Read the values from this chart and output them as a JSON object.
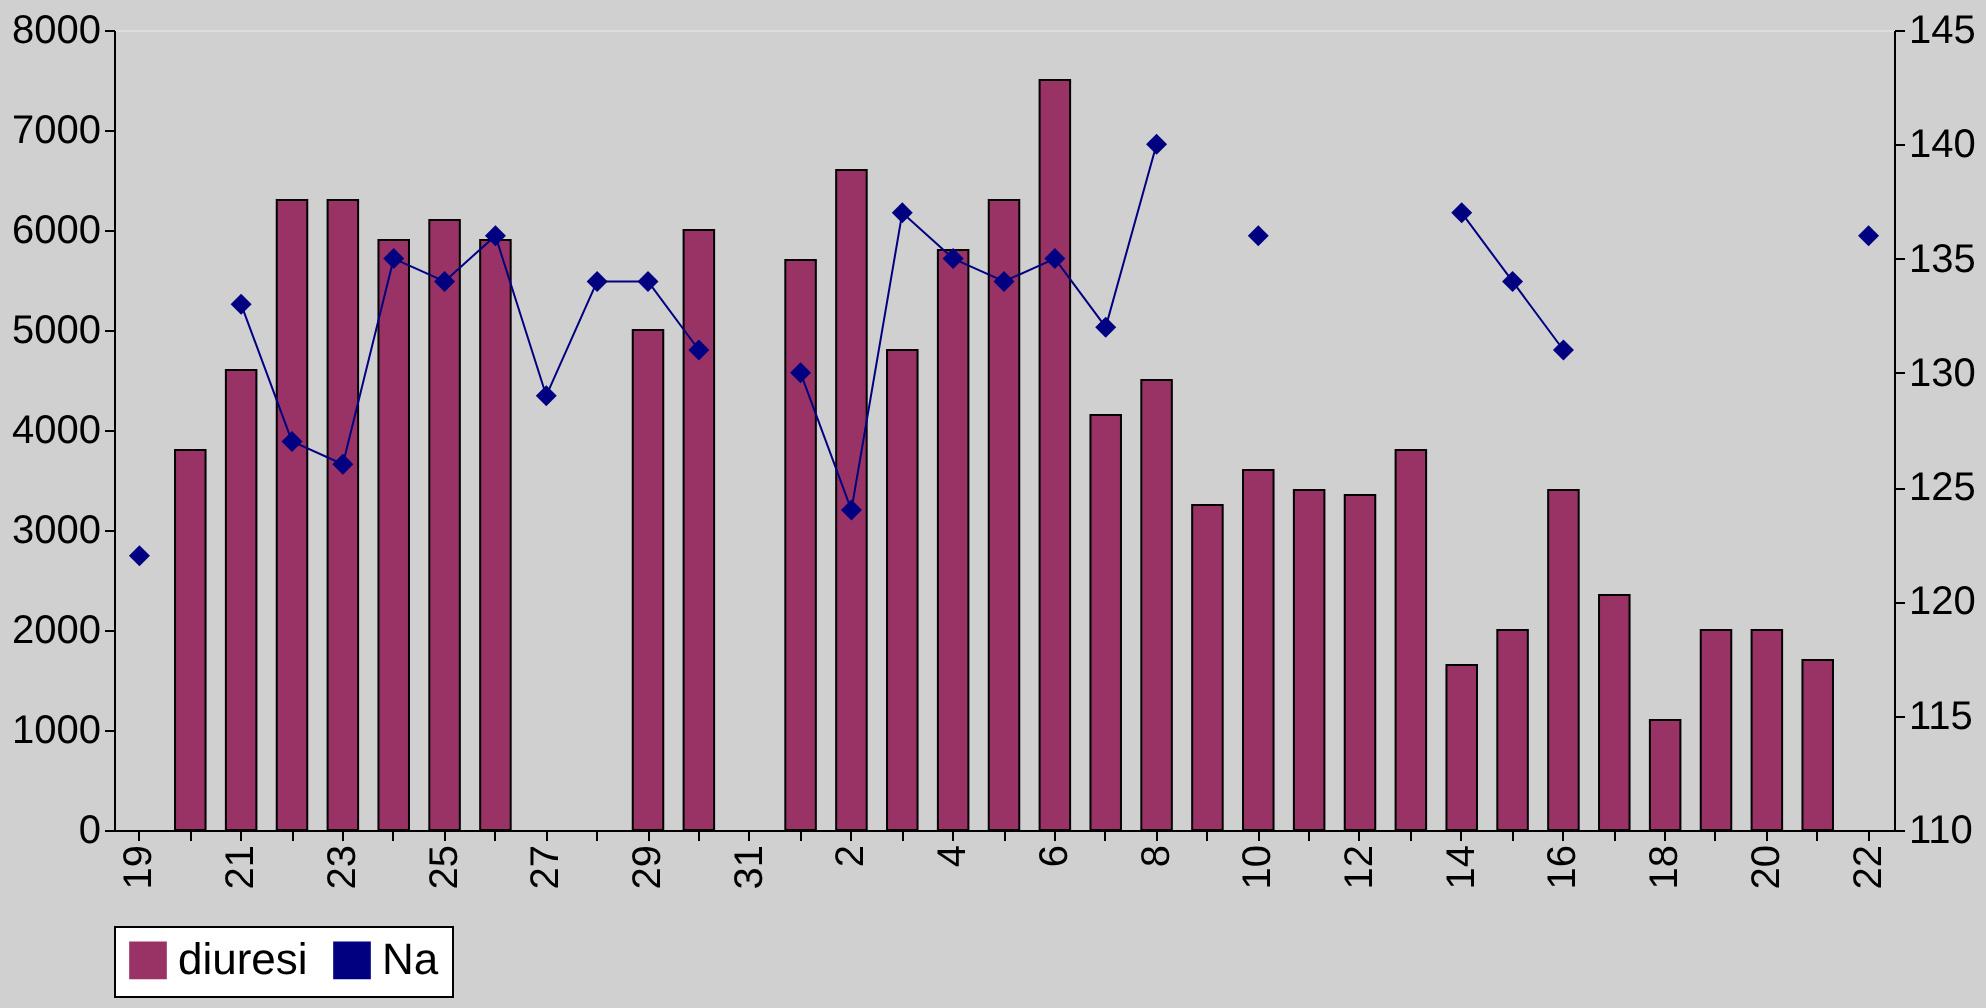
{
  "chart_data": {
    "type": "bar",
    "categories": [
      "19",
      null,
      "21",
      null,
      "23",
      null,
      "25",
      null,
      "27",
      null,
      "29",
      null,
      "31",
      null,
      "2",
      null,
      "4",
      null,
      "6",
      null,
      "8",
      null,
      "10",
      null,
      "12",
      null,
      "14",
      null,
      "16",
      null,
      "18",
      null,
      "20",
      null,
      "22"
    ],
    "series": [
      {
        "name": "diuresi",
        "color": "#993366",
        "values": [
          null,
          3800,
          4600,
          6300,
          6300,
          5900,
          6100,
          5900,
          null,
          null,
          5000,
          6000,
          null,
          5700,
          6600,
          4800,
          5800,
          6300,
          7500,
          4150,
          4500,
          3250,
          3600,
          3400,
          3350,
          3800,
          1650,
          2000,
          3400,
          2350,
          1100,
          2000,
          2000,
          1700,
          null
        ]
      },
      {
        "name": "Na",
        "type": "line",
        "axis": "y2",
        "color": "#000080",
        "marker": "diamond",
        "values": [
          122,
          null,
          133,
          127,
          126,
          135,
          134,
          136,
          129,
          134,
          134,
          131,
          null,
          130,
          124,
          137,
          135,
          134,
          135,
          132,
          140,
          null,
          136,
          null,
          null,
          null,
          137,
          134,
          131,
          null,
          null,
          null,
          null,
          null,
          136
        ]
      }
    ],
    "ylim": [
      0,
      8000
    ],
    "yticks": [
      0,
      1000,
      2000,
      3000,
      4000,
      5000,
      6000,
      7000,
      8000
    ],
    "y2lim": [
      110,
      145
    ],
    "y2ticks": [
      110,
      115,
      120,
      125,
      130,
      135,
      140,
      145
    ],
    "grid": false,
    "legend": "bottom"
  }
}
